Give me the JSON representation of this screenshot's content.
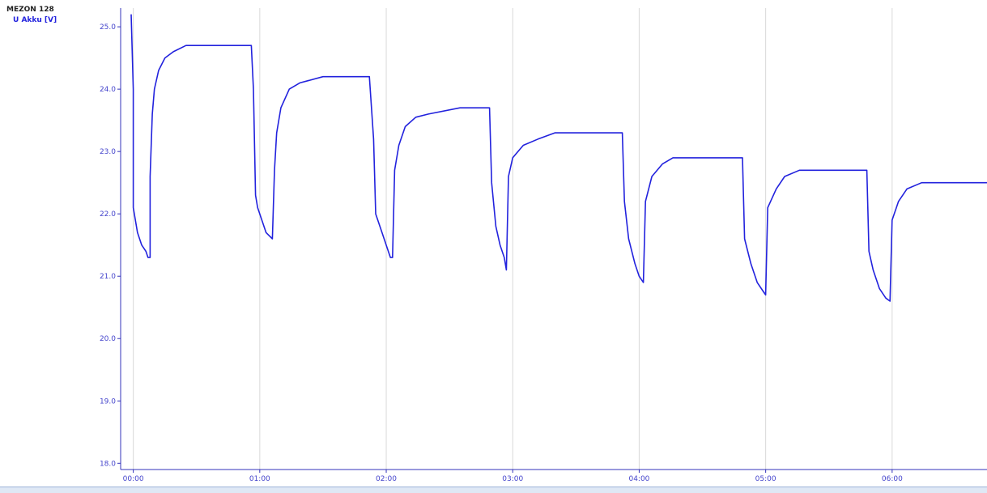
{
  "legend": {
    "device": "MEZON 128",
    "series_label": "U Akku [V]"
  },
  "colors": {
    "series": "#2222dd",
    "axis_text": "#4444cc",
    "grid": "#d9d9d9",
    "axis": "#3333bb"
  },
  "chart_data": {
    "type": "line",
    "title": "",
    "xlabel": "",
    "ylabel": "",
    "x_unit": "hours",
    "xlim": [
      "-00:06",
      "06:45"
    ],
    "ylim": [
      17.9,
      25.3
    ],
    "y_ticks": [
      "18.0",
      "19.0",
      "20.0",
      "21.0",
      "22.0",
      "23.0",
      "24.0",
      "25.0"
    ],
    "y_tick_values": [
      18,
      19,
      20,
      21,
      22,
      23,
      24,
      25
    ],
    "x_ticks": [
      "00:00",
      "01:00",
      "02:00",
      "03:00",
      "04:00",
      "05:00",
      "06:00"
    ],
    "x_tick_values": [
      "00:00",
      "01:00",
      "02:00",
      "03:00",
      "04:00",
      "05:00",
      "06:00"
    ],
    "grid": "vertical gridlines at x ticks",
    "legend_position": "top-left",
    "series": [
      {
        "name": "U Akku [V]",
        "points": [
          [
            "-00:01",
            25.2
          ],
          [
            "00:00",
            24.0
          ],
          [
            "00:00",
            22.1
          ],
          [
            "00:01",
            21.9
          ],
          [
            "00:02",
            21.7
          ],
          [
            "00:04",
            21.5
          ],
          [
            "00:06",
            21.4
          ],
          [
            "00:07",
            21.3
          ],
          [
            "00:08",
            21.3
          ],
          [
            "00:08",
            22.6
          ],
          [
            "00:09",
            23.6
          ],
          [
            "00:10",
            24.0
          ],
          [
            "00:12",
            24.3
          ],
          [
            "00:15",
            24.5
          ],
          [
            "00:19",
            24.6
          ],
          [
            "00:25",
            24.7
          ],
          [
            "00:35",
            24.7
          ],
          [
            "00:56",
            24.7
          ],
          [
            "00:57",
            24.0
          ],
          [
            "00:58",
            22.3
          ],
          [
            "00:59",
            22.1
          ],
          [
            "01:01",
            21.9
          ],
          [
            "01:03",
            21.7
          ],
          [
            "01:06",
            21.6
          ],
          [
            "01:07",
            22.7
          ],
          [
            "01:08",
            23.3
          ],
          [
            "01:10",
            23.7
          ],
          [
            "01:14",
            24.0
          ],
          [
            "01:19",
            24.1
          ],
          [
            "01:30",
            24.2
          ],
          [
            "01:52",
            24.2
          ],
          [
            "01:54",
            23.2
          ],
          [
            "01:55",
            22.0
          ],
          [
            "01:58",
            21.7
          ],
          [
            "02:00",
            21.5
          ],
          [
            "02:02",
            21.3
          ],
          [
            "02:03",
            21.3
          ],
          [
            "02:04",
            22.7
          ],
          [
            "02:06",
            23.1
          ],
          [
            "02:09",
            23.4
          ],
          [
            "02:14",
            23.55
          ],
          [
            "02:20",
            23.6
          ],
          [
            "02:35",
            23.7
          ],
          [
            "02:49",
            23.7
          ],
          [
            "02:50",
            22.5
          ],
          [
            "02:52",
            21.8
          ],
          [
            "02:54",
            21.5
          ],
          [
            "02:56",
            21.3
          ],
          [
            "02:57",
            21.1
          ],
          [
            "02:58",
            22.6
          ],
          [
            "03:00",
            22.9
          ],
          [
            "03:05",
            23.1
          ],
          [
            "03:12",
            23.2
          ],
          [
            "03:20",
            23.3
          ],
          [
            "03:52",
            23.3
          ],
          [
            "03:53",
            22.2
          ],
          [
            "03:55",
            21.6
          ],
          [
            "03:58",
            21.2
          ],
          [
            "04:00",
            21.0
          ],
          [
            "04:02",
            20.9
          ],
          [
            "04:03",
            22.2
          ],
          [
            "04:06",
            22.6
          ],
          [
            "04:11",
            22.8
          ],
          [
            "04:16",
            22.9
          ],
          [
            "04:25",
            22.9
          ],
          [
            "04:49",
            22.9
          ],
          [
            "04:50",
            21.6
          ],
          [
            "04:53",
            21.2
          ],
          [
            "04:56",
            20.9
          ],
          [
            "04:59",
            20.75
          ],
          [
            "05:00",
            20.7
          ],
          [
            "05:01",
            22.1
          ],
          [
            "05:05",
            22.4
          ],
          [
            "05:09",
            22.6
          ],
          [
            "05:16",
            22.7
          ],
          [
            "05:48",
            22.7
          ],
          [
            "05:49",
            21.4
          ],
          [
            "05:51",
            21.1
          ],
          [
            "05:54",
            20.8
          ],
          [
            "05:57",
            20.65
          ],
          [
            "05:59",
            20.6
          ],
          [
            "06:00",
            21.9
          ],
          [
            "06:03",
            22.2
          ],
          [
            "06:07",
            22.4
          ],
          [
            "06:14",
            22.5
          ],
          [
            "06:45",
            22.5
          ]
        ]
      }
    ]
  }
}
